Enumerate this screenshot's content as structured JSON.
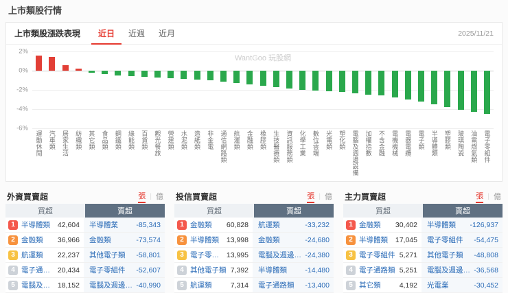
{
  "page": {
    "title": "上市類股行情"
  },
  "chart_card": {
    "title": "上市類股漲跌表現",
    "tabs": [
      {
        "label": "近日",
        "active": true
      },
      {
        "label": "近週",
        "active": false
      },
      {
        "label": "近月",
        "active": false
      }
    ],
    "date": "2025/11/21",
    "watermark": "WantGoo 玩股網"
  },
  "chart_data": {
    "type": "bar",
    "title": "上市類股漲跌表現(近日)",
    "categories": [
      "運動休閒",
      "汽車類",
      "居家生活",
      "紡織類",
      "其它類",
      "食品類",
      "鋼鐵類",
      "綠能類",
      "百貨類",
      "觀光餐旅",
      "營建類",
      "水泥類",
      "造紙類",
      "非金電",
      "通信網路類",
      "航運類",
      "金融類",
      "橡膠類",
      "生技醫療類",
      "資訊服務類",
      "化學工業",
      "數位雲端",
      "光電類",
      "塑化類",
      "電腦及週邊設備",
      "加權指數",
      "不含金融",
      "電機機械",
      "電器電纜",
      "電子類",
      "半導體類",
      "塑膠類",
      "玻璃陶瓷",
      "油電燃氣類",
      "電子零組件"
    ],
    "values": [
      1.6,
      1.4,
      0.6,
      0.2,
      -0.2,
      -0.35,
      -0.5,
      -0.6,
      -0.65,
      -0.7,
      -0.8,
      -0.85,
      -0.9,
      -1.0,
      -1.15,
      -1.3,
      -1.4,
      -1.55,
      -1.7,
      -1.85,
      -2.0,
      -2.05,
      -2.15,
      -2.2,
      -2.35,
      -2.5,
      -2.6,
      -2.8,
      -3.0,
      -3.2,
      -3.5,
      -3.8,
      -4.1,
      -4.3,
      -4.5
    ],
    "ylabel": "",
    "ylim": [
      -6,
      2
    ],
    "yticks": [
      2,
      0,
      -2,
      -4,
      -6
    ],
    "ytick_labels": [
      "2%",
      "0%",
      "-2%",
      "-4%",
      "-6%"
    ],
    "grid": true,
    "up_color": "#e23f36",
    "down_color": "#2aa84c"
  },
  "tables": [
    {
      "title": "外資買賣超",
      "unit_lots": "張",
      "unit_amount": "億",
      "buy_header": "買超",
      "sell_header": "賣超",
      "rows": [
        {
          "rank": 1,
          "buy_name": "半導體類",
          "buy_value": "42,604",
          "sell_name": "半導體業",
          "sell_value": "-85,343"
        },
        {
          "rank": 2,
          "buy_name": "金融類",
          "buy_value": "36,966",
          "sell_name": "金融類",
          "sell_value": "-73,574"
        },
        {
          "rank": 3,
          "buy_name": "航運類",
          "buy_value": "22,237",
          "sell_name": "其他電子類",
          "sell_value": "-58,801"
        },
        {
          "rank": 4,
          "buy_name": "電子通路類",
          "buy_value": "20,434",
          "sell_name": "電子零組件",
          "sell_value": "-52,607"
        },
        {
          "rank": 5,
          "buy_name": "電腦及週邊設備",
          "buy_value": "18,152",
          "sell_name": "電腦及週邊設備",
          "sell_value": "-40,990"
        }
      ]
    },
    {
      "title": "投信買賣超",
      "unit_lots": "張",
      "unit_amount": "億",
      "buy_header": "買超",
      "sell_header": "賣超",
      "rows": [
        {
          "rank": 1,
          "buy_name": "金融類",
          "buy_value": "60,828",
          "sell_name": "航運類",
          "sell_value": "-33,232"
        },
        {
          "rank": 2,
          "buy_name": "半導體類",
          "buy_value": "13,998",
          "sell_name": "金融類",
          "sell_value": "-24,680"
        },
        {
          "rank": 3,
          "buy_name": "電子零組件",
          "buy_value": "13,995",
          "sell_name": "電腦及週邊設備",
          "sell_value": "-24,380"
        },
        {
          "rank": 4,
          "buy_name": "其他電子類",
          "buy_value": "7,392",
          "sell_name": "半導體類",
          "sell_value": "-14,480"
        },
        {
          "rank": 5,
          "buy_name": "航運類",
          "buy_value": "7,314",
          "sell_name": "電子通路類",
          "sell_value": "-13,400"
        }
      ]
    },
    {
      "title": "主力買賣超",
      "unit_lots": "張",
      "unit_amount": "億",
      "buy_header": "買超",
      "sell_header": "賣超",
      "rows": [
        {
          "rank": 1,
          "buy_name": "金融類",
          "buy_value": "30,402",
          "sell_name": "半導體類",
          "sell_value": "-126,937"
        },
        {
          "rank": 2,
          "buy_name": "半導體類",
          "buy_value": "17,045",
          "sell_name": "電子零組件",
          "sell_value": "-54,475"
        },
        {
          "rank": 3,
          "buy_name": "電子零組件",
          "buy_value": "5,271",
          "sell_name": "其他電子類",
          "sell_value": "-48,808"
        },
        {
          "rank": 4,
          "buy_name": "電子通路類",
          "buy_value": "5,251",
          "sell_name": "電腦及週邊設備",
          "sell_value": "-36,568"
        },
        {
          "rank": 5,
          "buy_name": "其它類",
          "buy_value": "4,192",
          "sell_name": "光電業",
          "sell_value": "-30,452"
        }
      ]
    }
  ]
}
